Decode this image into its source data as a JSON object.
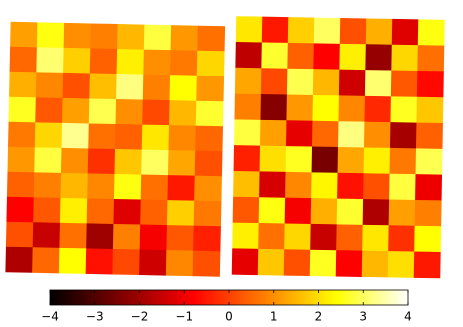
{
  "chart_data": {
    "type": "heatmap",
    "colormap": "hot",
    "clim": [
      -4,
      4
    ],
    "colorbar_ticks": [
      {
        "value": -4,
        "label": "−4"
      },
      {
        "value": -3,
        "label": "−3"
      },
      {
        "value": -2,
        "label": "−2"
      },
      {
        "value": -1,
        "label": "−1"
      },
      0,
      1,
      2,
      3,
      4
    ],
    "maps": [
      {
        "values": [
          [
            1.2,
            2.5,
            1.0,
            0.8,
            1.5,
            2.8,
            1.1,
            0.6
          ],
          [
            0.5,
            3.1,
            1.8,
            0.4,
            2.2,
            1.0,
            0.7,
            1.9
          ],
          [
            1.4,
            0.9,
            0.2,
            1.6,
            3.2,
            0.8,
            2.4,
            1.1
          ],
          [
            2.6,
            0.3,
            1.2,
            2.9,
            1.0,
            0.1,
            1.5,
            2.7
          ],
          [
            0.7,
            1.9,
            3.3,
            0.6,
            0.4,
            2.1,
            0.9,
            0.5
          ],
          [
            1.1,
            2.8,
            1.0,
            -0.2,
            1.7,
            3.0,
            1.3,
            0.2
          ],
          [
            0.4,
            0.8,
            1.5,
            0.9,
            2.5,
            0.6,
            -0.5,
            1.0
          ],
          [
            -0.8,
            0.3,
            2.2,
            0.5,
            -1.2,
            0.4,
            1.8,
            0.7
          ],
          [
            0.2,
            -1.5,
            0.6,
            -2.0,
            0.8,
            -0.9,
            0.3,
            -0.4
          ],
          [
            -1.8,
            0.5,
            2.4,
            -0.6,
            0.1,
            -1.4,
            0.9,
            0.2
          ]
        ]
      },
      {
        "values": [
          [
            2.1,
            -0.5,
            1.8,
            3.0,
            0.2,
            1.4,
            -1.2,
            2.5
          ],
          [
            -1.6,
            2.7,
            0.4,
            -0.8,
            2.2,
            -2.1,
            1.9,
            0.6
          ],
          [
            1.3,
            0.1,
            2.9,
            1.5,
            -1.4,
            3.1,
            0.3,
            -0.7
          ],
          [
            0.8,
            -2.3,
            1.1,
            2.4,
            0.9,
            -0.3,
            2.6,
            1.7
          ],
          [
            2.8,
            1.2,
            -1.1,
            0.5,
            3.2,
            1.0,
            -1.9,
            0.4
          ],
          [
            -0.4,
            2.0,
            2.6,
            -2.5,
            1.3,
            2.2,
            0.7,
            2.9
          ],
          [
            1.6,
            -1.3,
            0.9,
            2.3,
            -0.6,
            0.2,
            2.8,
            -1.0
          ],
          [
            0.3,
            2.5,
            -0.9,
            1.4,
            2.7,
            -1.8,
            1.2,
            0.8
          ],
          [
            2.2,
            0.6,
            1.9,
            -1.5,
            0.4,
            2.1,
            -0.2,
            2.4
          ],
          [
            -1.1,
            1.7,
            0.2,
            2.6,
            -0.8,
            1.5,
            2.0,
            -0.5
          ]
        ]
      }
    ]
  }
}
